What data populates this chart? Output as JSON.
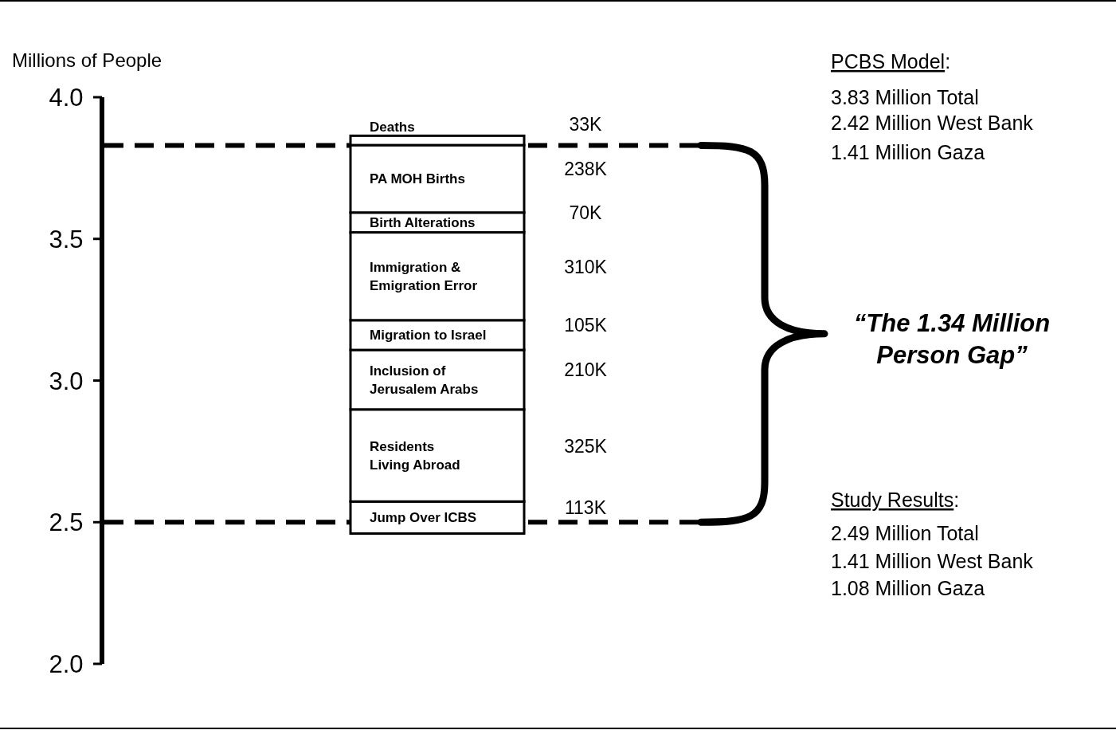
{
  "chart_data": {
    "type": "bar",
    "categories": [
      null
    ],
    "ylabel": "Millions of People",
    "ylim": [
      2.0,
      4.0
    ],
    "yticks": [
      {
        "value": 2.0,
        "label": "2.0"
      },
      {
        "value": 2.5,
        "label": "2.5"
      },
      {
        "value": 3.0,
        "label": "3.0"
      },
      {
        "value": 3.5,
        "label": "3.5"
      },
      {
        "value": 4.0,
        "label": "4.0"
      }
    ],
    "tick_labels": "y",
    "series": [
      {
        "name": "Jump Over ICBS",
        "color": "#ffffff",
        "values": [
          0.113
        ],
        "base": [
          2.46
        ]
      },
      {
        "name": "Residents\nLiving Abroad",
        "color": "#ffffff",
        "values": [
          0.325
        ],
        "base": [
          2.573
        ]
      },
      {
        "name": "Inclusion of\nJerusalem Arabs",
        "color": "#ffffff",
        "values": [
          0.21
        ],
        "base": [
          2.898
        ]
      },
      {
        "name": "Migration to Israel",
        "color": "#ffffff",
        "values": [
          0.105
        ],
        "base": [
          3.108
        ]
      },
      {
        "name": "Immigration &\nEmigration Error",
        "color": "#ffffff",
        "values": [
          0.31
        ],
        "base": [
          3.213
        ]
      },
      {
        "name": "Birth Alterations",
        "color": "#ffffff",
        "values": [
          0.07
        ],
        "base": [
          3.523
        ]
      },
      {
        "name": "PA MOH Births",
        "color": "#ffffff",
        "values": [
          0.238
        ],
        "base": [
          3.593
        ]
      },
      {
        "name": "Deaths",
        "color": "#ffffff",
        "values": [
          0.033
        ],
        "base": [
          3.831
        ]
      }
    ],
    "ref_lines": [
      {
        "axis": "y",
        "value": 3.83,
        "label": null,
        "line_style": "dashed",
        "color": "#000000"
      },
      {
        "axis": "y",
        "value": 2.5,
        "label": null,
        "line_style": "dashed",
        "color": "#000000"
      }
    ],
    "annotations": [
      "113K",
      "325K",
      "210K",
      "105K",
      "310K",
      "70K",
      "238K",
      "33K",
      "PCBS Model:",
      "3.83 Million Total",
      "2.42 Million West Bank",
      "1.41 Million Gaza",
      "Study Results:",
      "2.49 Million Total",
      "1.41 Million West Bank",
      "1.08 Million Gaza",
      "“The 1.34 Million\nPerson Gap”"
    ]
  }
}
